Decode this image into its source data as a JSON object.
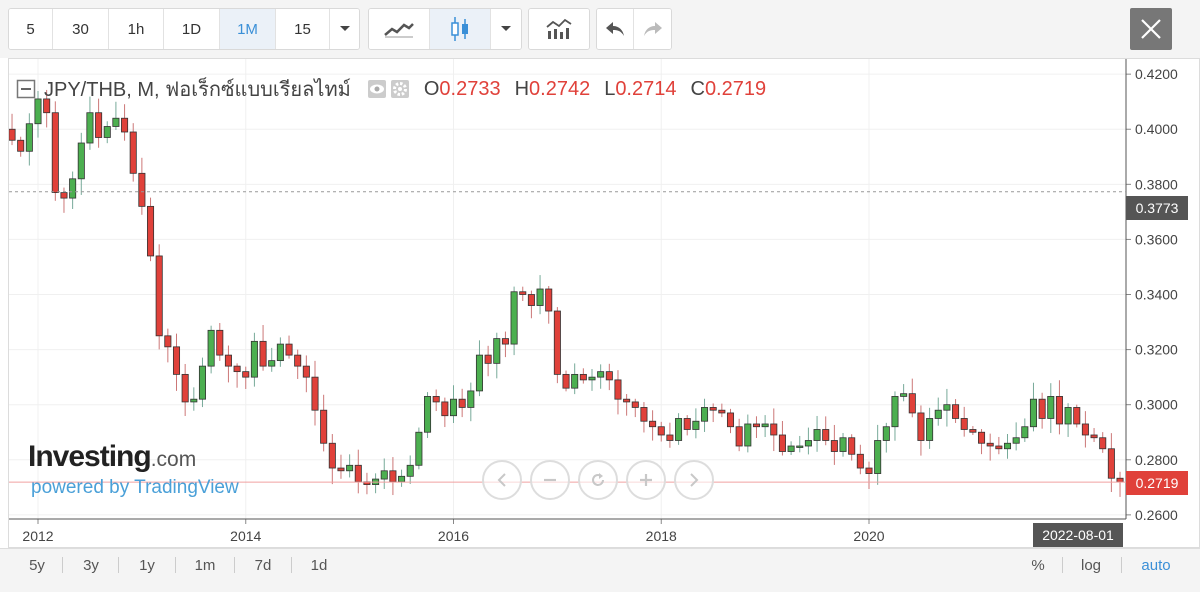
{
  "toolbar": {
    "intervals": [
      "5",
      "30",
      "1h",
      "1D",
      "1M",
      "15"
    ],
    "active_interval": "1M"
  },
  "legend": {
    "symbol": "JPY/THB, M, ฟอเร็กซ์แบบเรียลไทม์",
    "open_label": "O",
    "open": "0.2733",
    "high_label": "H",
    "high": "0.2742",
    "low_label": "L",
    "low": "0.2714",
    "close_label": "C",
    "close": "0.2719"
  },
  "brand": {
    "logo": "Investing",
    "logo_suffix": ".com",
    "powered": "powered by TradingView"
  },
  "price_tags": {
    "crosshair": "0.3773",
    "last": "0.2719"
  },
  "date_tag": "2022-08-01",
  "bottom_bar": {
    "ranges": [
      "5y",
      "3y",
      "1y",
      "1m",
      "7d",
      "1d"
    ],
    "percent": "%",
    "log": "log",
    "auto": "auto"
  },
  "colors": {
    "up": "#4caf50",
    "down": "#e0413a",
    "accent": "#3a8fd7"
  },
  "chart_data": {
    "type": "candlestick",
    "symbol": "JPY/THB",
    "interval": "monthly",
    "y_axis": {
      "range": [
        0.2585,
        0.4255
      ],
      "ticks": [
        "0.4200",
        "0.4000",
        "0.3800",
        "0.3600",
        "0.3400",
        "0.3200",
        "0.3000",
        "0.2800",
        "0.2600"
      ]
    },
    "x_axis": {
      "range": [
        "2011-10",
        "2022-08"
      ],
      "ticks": [
        {
          "label": "2012",
          "date": "2012-01"
        },
        {
          "label": "2014",
          "date": "2014-01"
        },
        {
          "label": "2016",
          "date": "2016-01"
        },
        {
          "label": "2018",
          "date": "2018-01"
        },
        {
          "label": "2020",
          "date": "2020-01"
        }
      ]
    },
    "crosshair_price": 0.3773,
    "last_price": 0.2719,
    "closes": [
      0.396,
      0.392,
      0.402,
      0.411,
      0.406,
      0.377,
      0.375,
      0.382,
      0.395,
      0.406,
      0.397,
      0.401,
      0.404,
      0.399,
      0.384,
      0.372,
      0.354,
      0.325,
      0.321,
      0.311,
      0.301,
      0.302,
      0.314,
      0.327,
      0.318,
      0.314,
      0.312,
      0.31,
      0.323,
      0.314,
      0.316,
      0.322,
      0.318,
      0.314,
      0.31,
      0.298,
      0.286,
      0.277,
      0.276,
      0.278,
      0.272,
      0.271,
      0.273,
      0.276,
      0.272,
      0.274,
      0.278,
      0.29,
      0.303,
      0.301,
      0.296,
      0.302,
      0.299,
      0.305,
      0.318,
      0.315,
      0.324,
      0.322,
      0.341,
      0.34,
      0.336,
      0.342,
      0.334,
      0.311,
      0.306,
      0.311,
      0.309,
      0.31,
      0.312,
      0.309,
      0.302,
      0.301,
      0.299,
      0.294,
      0.292,
      0.289,
      0.287,
      0.295,
      0.291,
      0.294,
      0.299,
      0.298,
      0.297,
      0.292,
      0.285,
      0.293,
      0.292,
      0.293,
      0.289,
      0.283,
      0.285,
      0.285,
      0.287,
      0.291,
      0.287,
      0.283,
      0.288,
      0.282,
      0.277,
      0.275,
      0.287,
      0.292,
      0.303,
      0.304,
      0.297,
      0.287,
      0.295,
      0.298,
      0.3,
      0.295,
      0.291,
      0.29,
      0.286,
      0.285,
      0.284,
      0.286,
      0.288,
      0.292,
      0.302,
      0.295,
      0.303,
      0.293,
      0.299,
      0.293,
      0.289,
      0.288,
      0.284,
      0.2733,
      0.2719
    ]
  }
}
